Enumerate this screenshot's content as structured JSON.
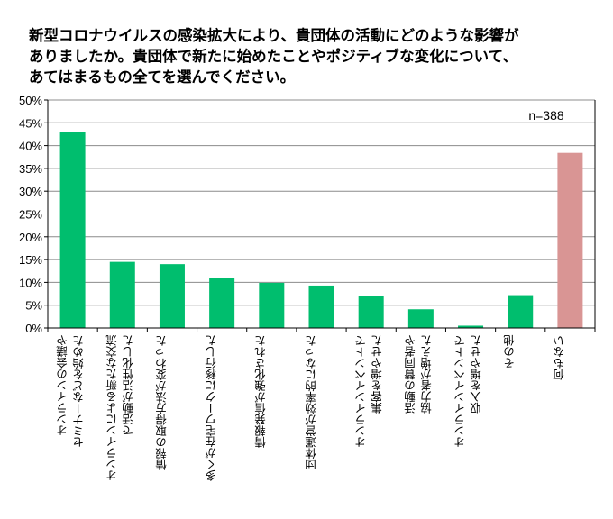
{
  "chart_data": {
    "type": "bar",
    "title": "新型コロナウイルスの感染拡大により、貴団体の活動にどのような影響が\nありましたか。貴団体で新たに始めたことやポジティブな変化について、\nあてはまるもの全てを選んでください。",
    "annotation": "n=388",
    "categories": [
      "オンラインの会議や\nセミナーなどを始めた",
      "オンラインによる新たな交流\nで活動が活性化した",
      "情報の取得方法が変わった",
      "多くが在宅ワークに移行した",
      "情報発信が強化された",
      "団体運営が効率的になった",
      "オンラインイベントで\n集客を増やせた",
      "活動の賛同者や\n協力者が増えた",
      "オンラインイベントで\n収入を増やせた",
      "その他",
      "何もない"
    ],
    "values": [
      43.0,
      14.5,
      14.0,
      10.9,
      9.9,
      9.3,
      7.1,
      4.1,
      0.5,
      7.2,
      38.4
    ],
    "ylim": [
      0,
      50
    ],
    "yticks": [
      "0%",
      "5%",
      "10%",
      "15%",
      "20%",
      "25%",
      "30%",
      "35%",
      "40%",
      "45%",
      "50%"
    ],
    "grid": true,
    "colors": {
      "bar": "#00BE6E",
      "highlight": "#D99594",
      "grid": "#8C8C8C"
    },
    "highlight_index": 10
  }
}
